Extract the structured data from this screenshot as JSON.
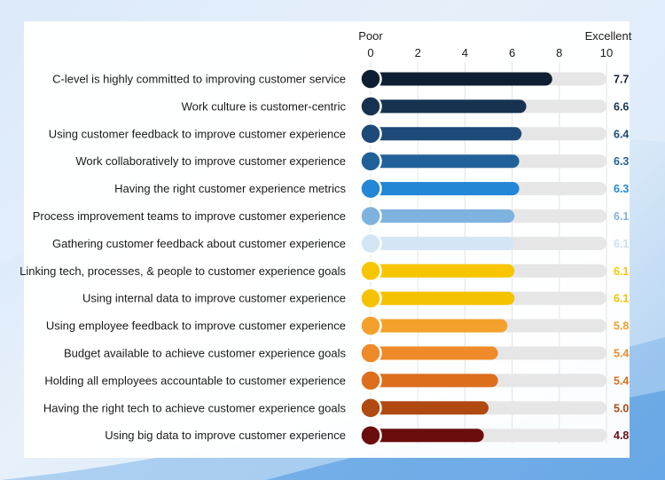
{
  "chart_data": {
    "type": "bar",
    "orientation": "horizontal",
    "x_range": [
      0,
      10
    ],
    "x_ticks": [
      "0",
      "2",
      "4",
      "6",
      "8",
      "10"
    ],
    "x_end_labels": {
      "min": "Poor",
      "max": "Excellent"
    },
    "grid": true,
    "categories": [
      "C-level is highly committed to improving customer service",
      "Work culture is customer-centric",
      "Using customer feedback to improve customer experience",
      "Work collaboratively to improve customer experience",
      "Having the right customer experience metrics",
      "Process improvement teams to improve customer experience",
      "Gathering customer feedback about customer experience",
      "Linking tech, processes, & people to customer experience goals",
      "Using internal data to improve customer experience",
      "Using employee feedback to improve customer experience",
      "Budget available to achieve customer experience goals",
      "Holding all employees accountable to customer experience",
      "Having the right tech to achieve customer experience goals",
      "Using big data to improve customer experience"
    ],
    "values": [
      7.7,
      6.6,
      6.4,
      6.3,
      6.3,
      6.1,
      6.1,
      6.1,
      6.1,
      5.8,
      5.4,
      5.4,
      5.0,
      4.8
    ],
    "value_labels": [
      "7.7",
      "6.6",
      "6.4",
      "6.3",
      "6.3",
      "6.1",
      "6.1",
      "6.1",
      "6.1",
      "5.8",
      "5.4",
      "5.4",
      "5.0",
      "4.8"
    ],
    "colors": [
      "#0e1f33",
      "#16324f",
      "#1d4a78",
      "#20619a",
      "#2386d6",
      "#7eb3e0",
      "#d4e6f6",
      "#f7c600",
      "#f5c200",
      "#f3a12c",
      "#ee8a2a",
      "#dc6e1c",
      "#b04a10",
      "#6b0d0d"
    ],
    "track_color": "#e6e6e6"
  }
}
